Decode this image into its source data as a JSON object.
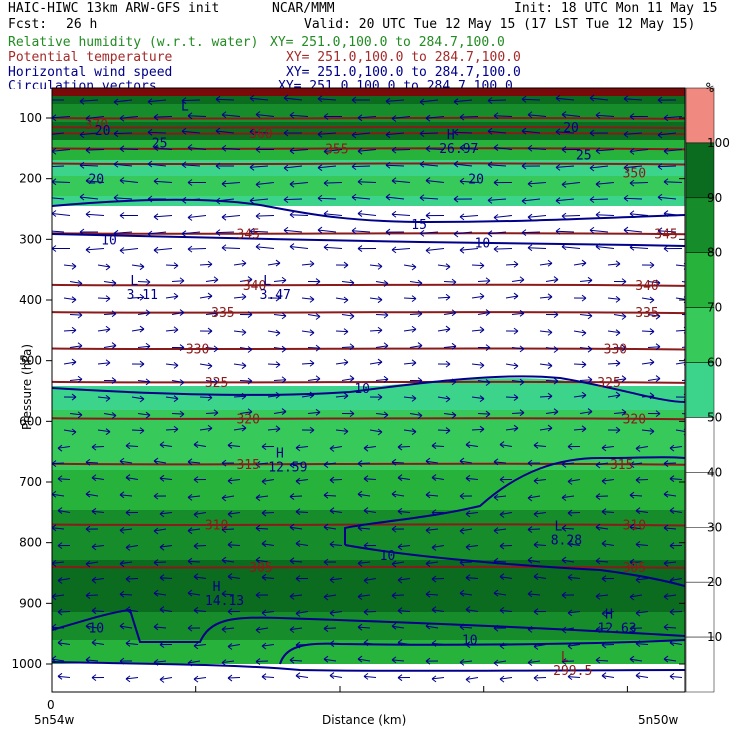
{
  "header": {
    "title": "HAIC-HIWC 13km ARW-GFS init",
    "org": "NCAR/MMM",
    "init": "Init: 18 UTC Mon 11 May 15",
    "fcst_label": "Fcst:",
    "fcst_value": "26 h",
    "valid": "Valid: 20 UTC Tue 12 May 15 (17 LST Tue 12 May 15)"
  },
  "legend": [
    {
      "label": "Relative humidity (w.r.t. water)",
      "xy": "XY= 251.0,100.0 to 284.7,100.0",
      "color": "#228b22"
    },
    {
      "label": "Potential temperature",
      "xy": "XY= 251.0,100.0 to 284.7,100.0",
      "color": "#a52a2a"
    },
    {
      "label": "Horizontal wind speed",
      "xy": "XY= 251.0,100.0 to 284.7,100.0",
      "color": "#00008b"
    },
    {
      "label": "Circulation vectors",
      "xy": "XY= 251.0,100.0 to 284.7,100.0",
      "color": "#00008b"
    }
  ],
  "colorbar": {
    "unit": "%",
    "levels": [
      10,
      20,
      30,
      40,
      50,
      60,
      70,
      80,
      90,
      100
    ],
    "colors": [
      "#ffffff",
      "#ffffff",
      "#ffffff",
      "#ffffff",
      "#ffffff",
      "#3cd48a",
      "#37c95a",
      "#27b23c",
      "#168c2a",
      "#0b6b1e",
      "#f08a80"
    ]
  },
  "chart_data": {
    "type": "heatmap",
    "ylabel": "Pressure (hPa)",
    "xlabel": "Distance (km)",
    "x_start_label": "5n54w",
    "x_end_label": "5n50w",
    "x_zero_label": "0",
    "yticks": [
      100,
      200,
      300,
      400,
      500,
      600,
      700,
      800,
      900,
      1000
    ],
    "ylim": [
      1050,
      75
    ],
    "theta_labels": [
      {
        "v": "370",
        "p": 110,
        "f": 0.07
      },
      {
        "v": "360",
        "p": 125,
        "f": 0.33
      },
      {
        "v": "355",
        "p": 150,
        "f": 0.45
      },
      {
        "v": "350",
        "p": 190,
        "f": 0.92
      },
      {
        "v": "345",
        "p": 290,
        "f": 0.31
      },
      {
        "v": "345",
        "p": 290,
        "f": 0.97
      },
      {
        "v": "340",
        "p": 375,
        "f": 0.32
      },
      {
        "v": "340",
        "p": 375,
        "f": 0.94
      },
      {
        "v": "335",
        "p": 420,
        "f": 0.27
      },
      {
        "v": "335",
        "p": 420,
        "f": 0.94
      },
      {
        "v": "330",
        "p": 480,
        "f": 0.23
      },
      {
        "v": "330",
        "p": 480,
        "f": 0.89
      },
      {
        "v": "325",
        "p": 535,
        "f": 0.26
      },
      {
        "v": "325",
        "p": 535,
        "f": 0.88
      },
      {
        "v": "320",
        "p": 595,
        "f": 0.31
      },
      {
        "v": "320",
        "p": 595,
        "f": 0.92
      },
      {
        "v": "315",
        "p": 670,
        "f": 0.31
      },
      {
        "v": "315",
        "p": 670,
        "f": 0.9
      },
      {
        "v": "310",
        "p": 770,
        "f": 0.26
      },
      {
        "v": "310",
        "p": 770,
        "f": 0.92
      },
      {
        "v": "305",
        "p": 840,
        "f": 0.33
      },
      {
        "v": "305",
        "p": 840,
        "f": 0.92
      }
    ],
    "wind_labels": [
      {
        "v": "20",
        "p": 120,
        "f": 0.08
      },
      {
        "v": "20",
        "p": 115,
        "f": 0.82
      },
      {
        "v": "25",
        "p": 140,
        "f": 0.17
      },
      {
        "v": "25",
        "p": 160,
        "f": 0.84
      },
      {
        "v": "20",
        "p": 200,
        "f": 0.07
      },
      {
        "v": "20",
        "p": 200,
        "f": 0.67
      },
      {
        "v": "15",
        "p": 275,
        "f": 0.58
      },
      {
        "v": "10",
        "p": 300,
        "f": 0.09
      },
      {
        "v": "10",
        "p": 305,
        "f": 0.68
      },
      {
        "v": "10",
        "p": 545,
        "f": 0.49
      },
      {
        "v": "10",
        "p": 820,
        "f": 0.53
      },
      {
        "v": "10",
        "p": 940,
        "f": 0.07
      },
      {
        "v": "10",
        "p": 960,
        "f": 0.66
      }
    ],
    "extrema": [
      {
        "kind": "L",
        "value": "",
        "p": 88,
        "f": 0.21
      },
      {
        "kind": "H",
        "value": "26.97",
        "p": 135,
        "f": 0.63
      },
      {
        "kind": "L",
        "value": "3.11",
        "p": 375,
        "f": 0.13
      },
      {
        "kind": "L",
        "value": "3.47",
        "p": 375,
        "f": 0.34
      },
      {
        "kind": "H",
        "value": "12.59",
        "p": 660,
        "f": 0.36
      },
      {
        "kind": "L",
        "value": "8.28",
        "p": 780,
        "f": 0.8
      },
      {
        "kind": "H",
        "value": "14.13",
        "p": 880,
        "f": 0.26
      },
      {
        "kind": "H",
        "value": "12.63",
        "p": 925,
        "f": 0.88
      },
      {
        "kind": "L",
        "value": "299.5",
        "p": 995,
        "f": 0.81
      }
    ]
  }
}
